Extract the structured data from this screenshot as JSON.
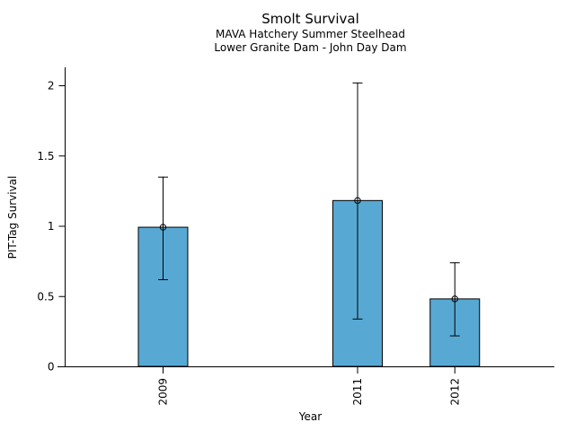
{
  "title": "Smolt Survival",
  "chart_data": {
    "type": "bar",
    "title": "Smolt Survival",
    "subtitles": [
      "MAVA Hatchery Summer Steelhead",
      "Lower Granite Dam - John Day Dam"
    ],
    "xlabel": "Year",
    "ylabel": "PIT-Tag Survival",
    "categories": [
      "2009",
      "2011",
      "2012"
    ],
    "x_numeric": [
      2009,
      2011,
      2012
    ],
    "values": [
      0.99,
      1.18,
      0.48
    ],
    "error_low": [
      0.62,
      0.34,
      0.22
    ],
    "error_high": [
      1.35,
      2.02,
      0.74
    ],
    "y_ticks": [
      0,
      0.5,
      1,
      1.5,
      2
    ],
    "ylim": [
      0,
      2.13
    ],
    "xlim": [
      2007.92,
      2013.03
    ],
    "marker": "open-circle",
    "x_tick_label_rotation": -90,
    "grid": false,
    "legend": false,
    "bar_color": "#57A9D4",
    "bar_edge_color": "#000000",
    "axis_color": "#000000",
    "text_color": "#000000"
  }
}
